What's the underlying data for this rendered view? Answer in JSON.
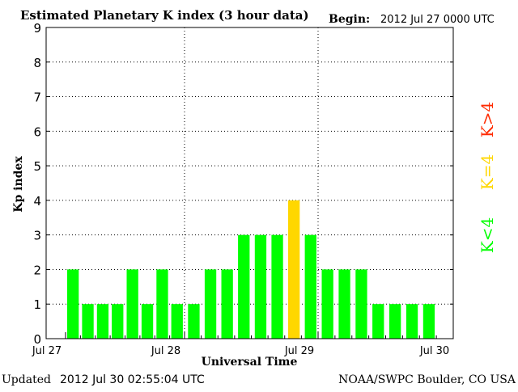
{
  "header": {
    "title": "Estimated Planetary K index (3 hour data)",
    "begin_label": "Begin:",
    "begin_value": "2012 Jul 27 0000 UTC"
  },
  "footer": {
    "updated_label": "Updated",
    "updated_value": "2012 Jul 30 02:55:04 UTC",
    "source": "NOAA/SWPC Boulder, CO USA"
  },
  "legend": [
    {
      "label": "K<4",
      "color": "#00ff00"
    },
    {
      "label": "K=4",
      "color": "#ffd700"
    },
    {
      "label": "K>4",
      "color": "#ff2a00"
    }
  ],
  "chart_data": {
    "type": "bar",
    "title": "Estimated Planetary K index (3 hour data)",
    "xlabel": "Universal Time",
    "ylabel": "Kp index",
    "ylim": [
      0,
      9
    ],
    "yticks": [
      "0",
      "1",
      "2",
      "3",
      "4",
      "5",
      "6",
      "7",
      "8",
      "9"
    ],
    "x_ticks": [
      "Jul 27",
      "Jul 28",
      "Jul 29",
      "Jul 30"
    ],
    "grid": true,
    "slots_per_day": 8,
    "days": 3,
    "first_slot_index": 1,
    "values": [
      2,
      1,
      1,
      1,
      2,
      1,
      2,
      1,
      1,
      2,
      2,
      3,
      3,
      3,
      4,
      3,
      2,
      2,
      2,
      1,
      1,
      1,
      1
    ],
    "colors": {
      "below": "#00ff00",
      "equal": "#ffd700",
      "above": "#ff2a00"
    },
    "threshold": 4
  }
}
